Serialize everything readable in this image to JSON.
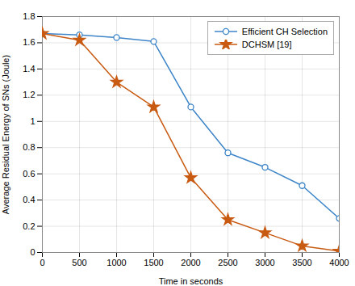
{
  "chart_data": {
    "type": "line",
    "x": [
      0,
      500,
      1000,
      1500,
      2000,
      2500,
      3000,
      3500,
      4000
    ],
    "series": [
      {
        "name": "Efficient CH Selection",
        "color": "#3d85c8",
        "marker": "circle",
        "values": [
          1.67,
          1.66,
          1.64,
          1.61,
          1.11,
          0.76,
          0.65,
          0.51,
          0.26
        ]
      },
      {
        "name": "DCHSM [19]",
        "color": "#c85a12",
        "marker": "star",
        "values": [
          1.67,
          1.62,
          1.3,
          1.11,
          0.57,
          0.25,
          0.15,
          0.05,
          0.01
        ]
      }
    ],
    "xlabel": "Time in seconds",
    "ylabel": "Average Residual Energy of SNs (Joule)",
    "xlim": [
      0,
      4000
    ],
    "ylim": [
      0,
      1.8
    ],
    "xticks": [
      0,
      500,
      1000,
      1500,
      2000,
      2500,
      3000,
      3500,
      4000
    ],
    "yticks": [
      0,
      0.2,
      0.4,
      0.6,
      0.8,
      1,
      1.2,
      1.4,
      1.6,
      1.8
    ],
    "grid": true,
    "legend": "upper right"
  }
}
